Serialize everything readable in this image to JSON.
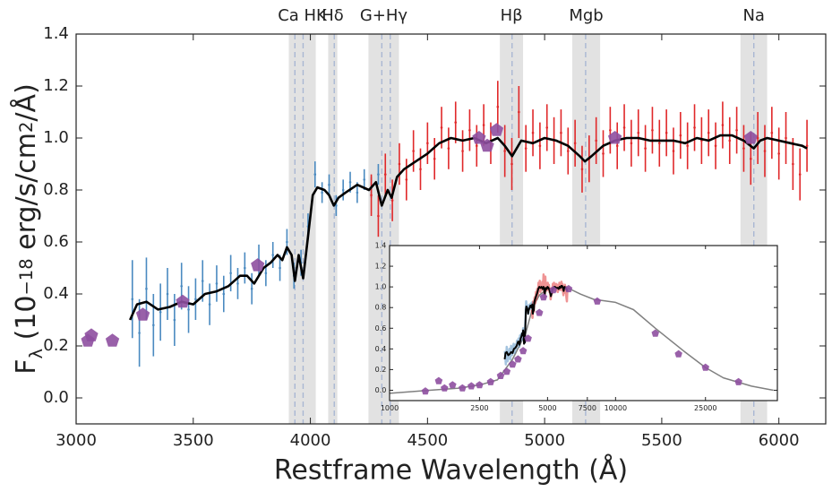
{
  "chart_data": [
    {
      "type": "errorbar",
      "xlabel": "Restframe Wavelength (Å)",
      "ylabel": [
        "F",
        "λ",
        " (10",
        "−18",
        " erg/s/cm",
        "2",
        "/Å)"
      ],
      "xlim": [
        3000,
        6200
      ],
      "ylim": [
        -0.1,
        1.4
      ],
      "xticks": [
        3000,
        3500,
        4000,
        4500,
        5000,
        5500,
        6000
      ],
      "yticks": [
        {
          "value": 0,
          "label": "0.0"
        },
        {
          "value": 0.2,
          "label": "0.2"
        },
        {
          "value": 0.4,
          "label": "0.4"
        },
        {
          "value": 0.6,
          "label": "0.6"
        },
        {
          "value": 0.8,
          "label": "0.8"
        },
        {
          "value": 1.0,
          "label": "1.0"
        },
        {
          "value": 1.2,
          "label": "1.2"
        },
        {
          "value": 1.4,
          "label": "1.4"
        }
      ],
      "features": [
        {
          "label": "Ca HK",
          "band": [
            3908,
            4023
          ],
          "lines": [
            3934,
            3969
          ]
        },
        {
          "label": "Hδ",
          "band": [
            4076,
            4115
          ],
          "lines": [
            4102
          ]
        },
        {
          "label": "G+Hγ",
          "band": [
            4248,
            4378
          ],
          "lines": [
            4305,
            4341
          ]
        },
        {
          "label": "Hβ",
          "band": [
            4809,
            4908
          ],
          "lines": [
            4861
          ]
        },
        {
          "label": "Mgb",
          "band": [
            5118,
            5237
          ],
          "lines": [
            5175
          ]
        },
        {
          "label": "Na",
          "band": [
            5836,
            5950
          ],
          "lines": [
            5893
          ]
        }
      ],
      "series": [
        {
          "style": "errorbar",
          "color": "#4a8ac0",
          "x": [
            3240,
            3270,
            3300,
            3330,
            3360,
            3390,
            3420,
            3450,
            3480,
            3510,
            3540,
            3570,
            3600,
            3630,
            3660,
            3690,
            3720,
            3750,
            3780,
            3810,
            3840,
            3870,
            3900,
            3930,
            3960,
            3990,
            4020,
            4050,
            4080,
            4110,
            4140,
            4170,
            4200,
            4230,
            4260,
            4290
          ],
          "values": [
            0.38,
            0.25,
            0.42,
            0.28,
            0.33,
            0.4,
            0.3,
            0.43,
            0.34,
            0.38,
            0.45,
            0.36,
            0.44,
            0.4,
            0.48,
            0.44,
            0.5,
            0.42,
            0.53,
            0.48,
            0.55,
            0.5,
            0.6,
            0.47,
            0.52,
            0.66,
            0.86,
            0.79,
            0.82,
            0.74,
            0.8,
            0.83,
            0.79,
            0.84,
            0.81,
            0.86
          ],
          "errors": [
            0.15,
            0.13,
            0.12,
            0.12,
            0.11,
            0.1,
            0.1,
            0.09,
            0.09,
            0.08,
            0.08,
            0.08,
            0.07,
            0.07,
            0.07,
            0.06,
            0.06,
            0.06,
            0.06,
            0.05,
            0.05,
            0.05,
            0.05,
            0.05,
            0.05,
            0.05,
            0.05,
            0.04,
            0.04,
            0.04,
            0.04,
            0.04,
            0.04,
            0.04,
            0.04,
            0.04
          ]
        },
        {
          "style": "errorbar",
          "color": "#e0282a",
          "x": [
            4260,
            4290,
            4320,
            4350,
            4380,
            4410,
            4440,
            4470,
            4500,
            4530,
            4560,
            4590,
            4620,
            4650,
            4680,
            4710,
            4740,
            4770,
            4800,
            4830,
            4860,
            4890,
            4920,
            4950,
            4980,
            5010,
            5040,
            5070,
            5100,
            5130,
            5160,
            5190,
            5220,
            5250,
            5280,
            5310,
            5340,
            5370,
            5400,
            5430,
            5460,
            5490,
            5520,
            5550,
            5580,
            5610,
            5640,
            5670,
            5700,
            5730,
            5760,
            5790,
            5820,
            5850,
            5880,
            5910,
            5940,
            5970,
            6000,
            6030,
            6060,
            6090,
            6120
          ],
          "values": [
            0.78,
            0.7,
            0.86,
            0.76,
            0.9,
            0.84,
            0.95,
            0.88,
            0.98,
            0.92,
            1.04,
            0.96,
            1.06,
            0.95,
            1.03,
            0.97,
            1.05,
            0.98,
            1.12,
            0.95,
            0.9,
            1.1,
            0.96,
            1.02,
            0.97,
            1.04,
            0.99,
            1.02,
            0.95,
            0.98,
            0.88,
            0.92,
            0.99,
            0.94,
            1.03,
            0.97,
            1.04,
            0.98,
            1.02,
            0.96,
            1.03,
            0.98,
            1.02,
            0.95,
            1.01,
            0.97,
            1.04,
            0.99,
            1.02,
            0.97,
            1.05,
            0.99,
            1.03,
            0.96,
            0.92,
            1.0,
            0.95,
            1.02,
            0.94,
            1.0,
            0.9,
            0.86,
            0.97
          ],
          "errors": [
            0.08,
            0.08,
            0.08,
            0.08,
            0.08,
            0.08,
            0.08,
            0.08,
            0.08,
            0.08,
            0.08,
            0.08,
            0.08,
            0.08,
            0.08,
            0.08,
            0.08,
            0.08,
            0.1,
            0.1,
            0.1,
            0.1,
            0.09,
            0.09,
            0.09,
            0.09,
            0.09,
            0.09,
            0.09,
            0.09,
            0.09,
            0.09,
            0.09,
            0.09,
            0.09,
            0.09,
            0.09,
            0.09,
            0.09,
            0.09,
            0.09,
            0.09,
            0.09,
            0.09,
            0.09,
            0.09,
            0.09,
            0.09,
            0.09,
            0.09,
            0.09,
            0.09,
            0.09,
            0.09,
            0.1,
            0.1,
            0.1,
            0.1,
            0.1,
            0.1,
            0.1,
            0.1,
            0.1
          ]
        },
        {
          "style": "line",
          "color": "#000000",
          "x": [
            3230,
            3260,
            3300,
            3350,
            3400,
            3450,
            3500,
            3550,
            3600,
            3650,
            3700,
            3730,
            3760,
            3800,
            3830,
            3860,
            3880,
            3900,
            3920,
            3934,
            3950,
            3969,
            3990,
            4010,
            4030,
            4060,
            4080,
            4100,
            4120,
            4150,
            4200,
            4250,
            4280,
            4305,
            4330,
            4347,
            4370,
            4400,
            4450,
            4500,
            4550,
            4600,
            4650,
            4700,
            4750,
            4800,
            4830,
            4861,
            4900,
            4950,
            5000,
            5050,
            5100,
            5150,
            5172,
            5200,
            5250,
            5300,
            5350,
            5400,
            5450,
            5500,
            5550,
            5600,
            5650,
            5700,
            5750,
            5800,
            5850,
            5893,
            5920,
            5950,
            6000,
            6050,
            6100,
            6120
          ],
          "values": [
            0.3,
            0.36,
            0.37,
            0.34,
            0.35,
            0.37,
            0.36,
            0.4,
            0.41,
            0.43,
            0.47,
            0.47,
            0.44,
            0.5,
            0.52,
            0.55,
            0.53,
            0.58,
            0.55,
            0.45,
            0.55,
            0.46,
            0.62,
            0.78,
            0.81,
            0.8,
            0.78,
            0.74,
            0.77,
            0.79,
            0.82,
            0.8,
            0.83,
            0.74,
            0.8,
            0.77,
            0.85,
            0.88,
            0.91,
            0.94,
            0.98,
            1.0,
            0.99,
            1.0,
            0.98,
            1.0,
            0.97,
            0.93,
            0.99,
            0.98,
            1.0,
            0.99,
            0.97,
            0.93,
            0.91,
            0.93,
            0.97,
            0.99,
            1.0,
            1.0,
            0.99,
            0.99,
            0.99,
            0.98,
            1.0,
            0.99,
            1.01,
            1.01,
            0.99,
            0.96,
            0.99,
            1.0,
            0.99,
            0.98,
            0.97,
            0.96
          ]
        },
        {
          "style": "marker",
          "color": "#8e4fa0",
          "x": [
            3050,
            3065,
            3155,
            3285,
            3455,
            3775,
            4720,
            4755,
            4795,
            5300,
            5880
          ],
          "values": [
            0.22,
            0.24,
            0.22,
            0.32,
            0.37,
            0.51,
            1.0,
            0.97,
            1.03,
            1.0,
            1.0
          ]
        }
      ]
    },
    {
      "type": "line",
      "xscale": "log",
      "xlim": [
        1000,
        52000
      ],
      "ylim": [
        -0.1,
        1.4
      ],
      "xticks": [
        1000,
        2500,
        5000,
        7500,
        10000,
        25000
      ],
      "yticks": [
        {
          "value": 0,
          "label": "0.0"
        },
        {
          "value": 0.2,
          "label": "0.2"
        },
        {
          "value": 0.4,
          "label": "0.4"
        },
        {
          "value": 0.6,
          "label": "0.6"
        },
        {
          "value": 0.8,
          "label": "0.8"
        },
        {
          "value": 1.0,
          "label": "1.0"
        },
        {
          "value": 1.2,
          "label": "1.2"
        },
        {
          "value": 1.4,
          "label": "1.4"
        }
      ],
      "series": [
        {
          "style": "line",
          "color": "#808080",
          "x": [
            1000,
            1500,
            2000,
            2500,
            3000,
            3500,
            4000,
            4300,
            4600,
            5000,
            6000,
            7000,
            8000,
            10000,
            12000,
            15000,
            20000,
            25000,
            30000,
            40000,
            50000
          ],
          "values": [
            -0.03,
            0.0,
            0.02,
            0.05,
            0.1,
            0.3,
            0.55,
            0.8,
            0.92,
            0.98,
            1.0,
            0.93,
            0.88,
            0.85,
            0.78,
            0.6,
            0.38,
            0.22,
            0.12,
            0.04,
            0.0
          ]
        },
        {
          "style": "marker",
          "color": "#8e4fa0",
          "x": [
            1440,
            1650,
            1750,
            1900,
            2100,
            2300,
            2500,
            2800,
            3100,
            3300,
            3500,
            3700,
            3900,
            4100,
            4600,
            4800,
            5300,
            6200,
            8300,
            15000,
            19000,
            25000,
            35000
          ],
          "values": [
            -0.01,
            0.09,
            0.02,
            0.05,
            0.02,
            0.04,
            0.05,
            0.08,
            0.14,
            0.18,
            0.25,
            0.3,
            0.38,
            0.5,
            0.75,
            0.9,
            0.97,
            0.98,
            0.86,
            0.55,
            0.35,
            0.22,
            0.08
          ]
        }
      ]
    }
  ]
}
